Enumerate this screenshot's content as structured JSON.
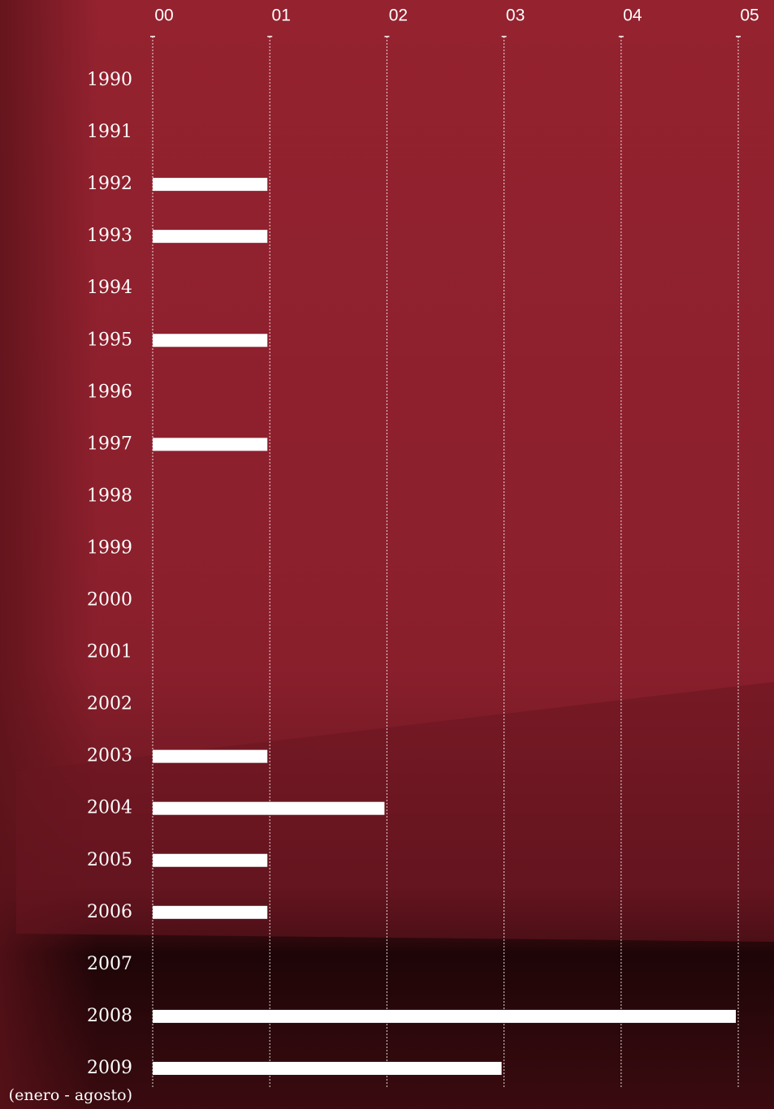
{
  "chart_data": {
    "type": "hbar",
    "categories": [
      "1990",
      "1991",
      "1992",
      "1993",
      "1994",
      "1995",
      "1996",
      "1997",
      "1998",
      "1999",
      "2000",
      "2001",
      "2002",
      "2003",
      "2004",
      "2005",
      "2006",
      "2007",
      "2008",
      "2009"
    ],
    "values": [
      0,
      0,
      1,
      1,
      0,
      1,
      0,
      1,
      0,
      0,
      0,
      0,
      0,
      1,
      2,
      1,
      1,
      0,
      5,
      3
    ],
    "color": "#ffffff",
    "annotation": "(enero - agosto)",
    "xlim": [
      0,
      5
    ],
    "xticks": [
      {
        "value": 0,
        "label": "00"
      },
      {
        "value": 1,
        "label": "01"
      },
      {
        "value": 2,
        "label": "02"
      },
      {
        "value": 3,
        "label": "03"
      },
      {
        "value": 4,
        "label": "04"
      },
      {
        "value": 5,
        "label": "05"
      }
    ],
    "grid": true
  }
}
